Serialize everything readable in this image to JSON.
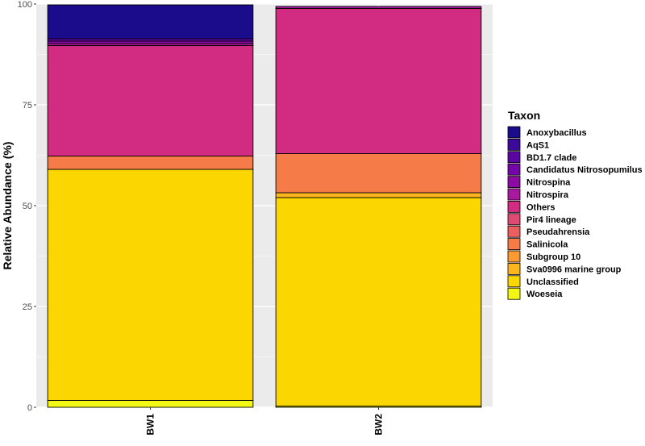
{
  "chart_data": {
    "type": "bar",
    "stacked": true,
    "ylabel": "Relative Abundance (%)",
    "xlabel": "",
    "ylim": [
      0,
      100
    ],
    "yticks": [
      0,
      25,
      50,
      75,
      100
    ],
    "grid": true,
    "legend_title": "Taxon",
    "legend_position": "right",
    "categories": [
      "BW1",
      "BW2"
    ],
    "series": [
      {
        "name": "Anoxybacillus",
        "color": "#1a0c8a",
        "values": [
          8.4,
          0.0
        ]
      },
      {
        "name": "AqS1",
        "color": "#3c0a9a",
        "values": [
          0.0,
          0.0
        ]
      },
      {
        "name": "BD1.7 clade",
        "color": "#5a06a2",
        "values": [
          0.6,
          0.0
        ]
      },
      {
        "name": "Candidatus Nitrosopumilus",
        "color": "#7405a8",
        "values": [
          0.0,
          0.0
        ]
      },
      {
        "name": "Nitrospina",
        "color": "#8c0aa3",
        "values": [
          0.6,
          0.0
        ]
      },
      {
        "name": "Nitrospira",
        "color": "#a71a9d",
        "values": [
          0.5,
          0.5
        ]
      },
      {
        "name": "Others",
        "color": "#d22b82",
        "values": [
          27.4,
          36.0
        ]
      },
      {
        "name": "Pir4 lineage",
        "color": "#df4a72",
        "values": [
          0.0,
          0.0
        ]
      },
      {
        "name": "Pseudahrensia",
        "color": "#ec5f60",
        "values": [
          0.0,
          0.0
        ]
      },
      {
        "name": "Salinicola",
        "color": "#f57c48",
        "values": [
          3.3,
          9.7
        ]
      },
      {
        "name": "Subgroup 10",
        "color": "#f99a32",
        "values": [
          0.0,
          0.0
        ]
      },
      {
        "name": "Sva0996 marine group",
        "color": "#fbb51f",
        "values": [
          0.0,
          1.2
        ]
      },
      {
        "name": "Unclassified",
        "color": "#fcd600",
        "values": [
          57.3,
          51.7
        ]
      },
      {
        "name": "Woeseia",
        "color": "#f2f714",
        "values": [
          1.7,
          0.3
        ]
      }
    ]
  }
}
